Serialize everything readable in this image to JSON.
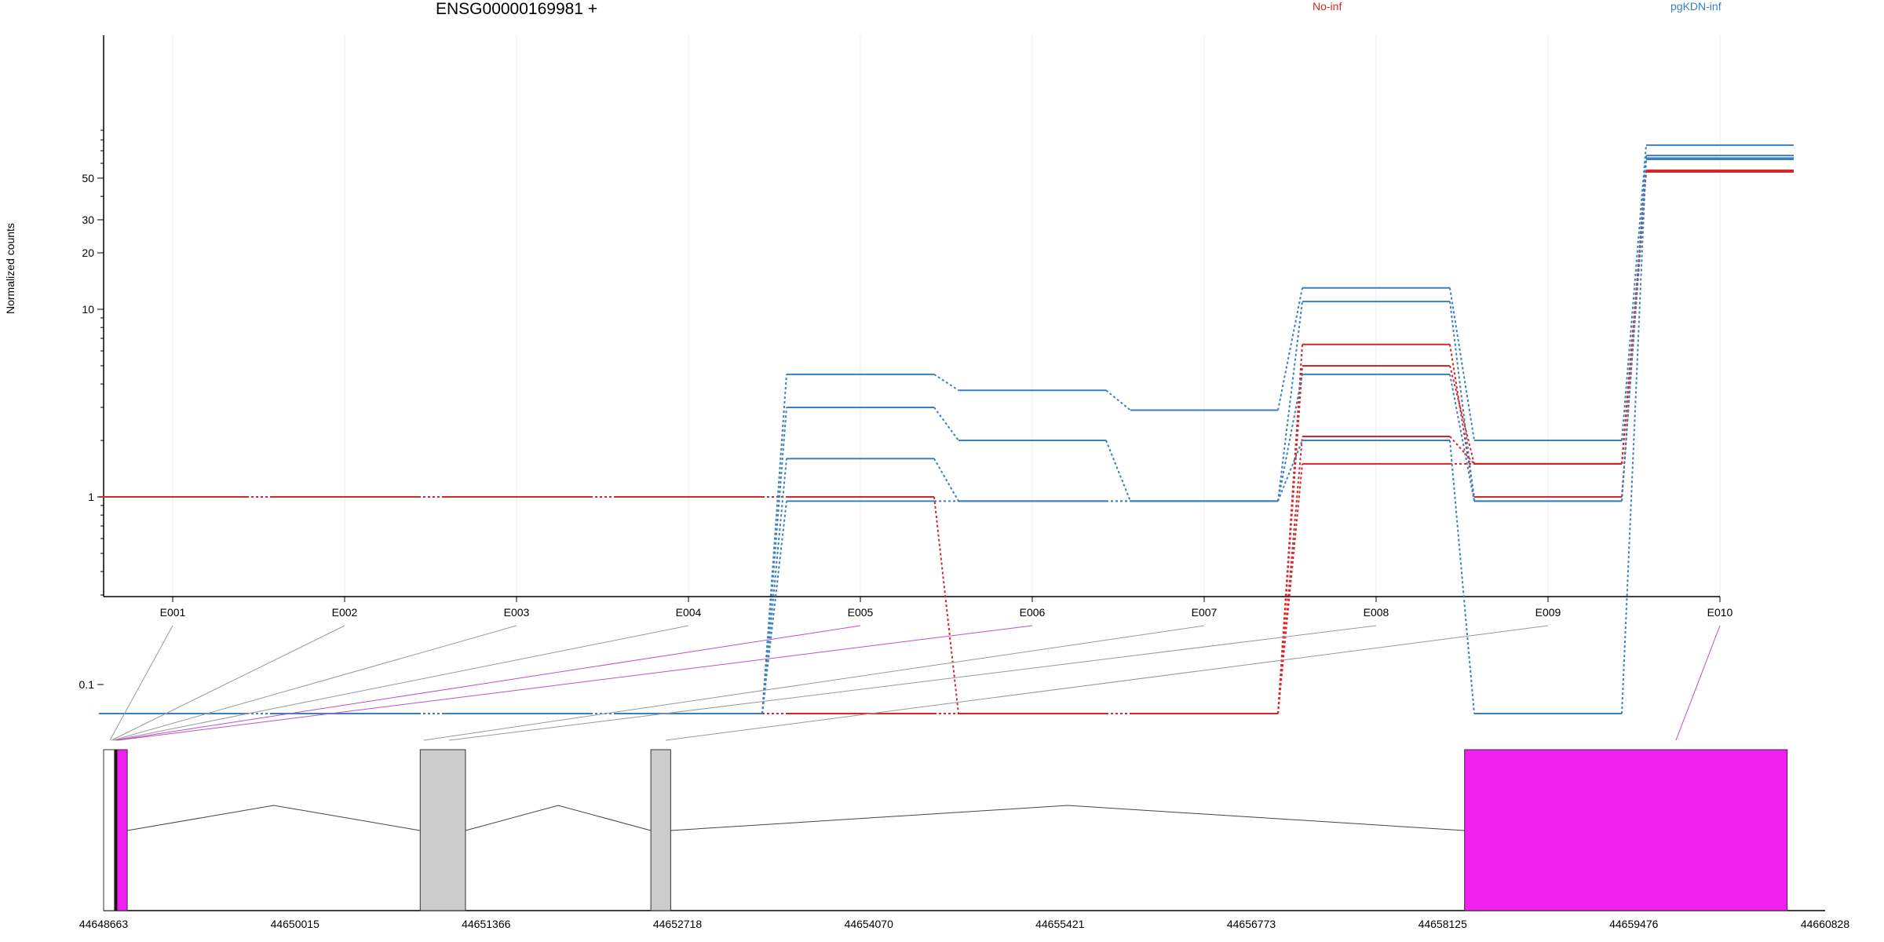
{
  "chart_data": {
    "type": "line",
    "title": "ENSG00000169981 +",
    "ylabel": "Normalized counts",
    "y_scale": "log",
    "yticks": [
      "0.1",
      "1",
      "10",
      "20",
      "30",
      "50"
    ],
    "categories": [
      "E001",
      "E002",
      "E003",
      "E004",
      "E005",
      "E006",
      "E007",
      "E008",
      "E009",
      "E010"
    ],
    "legend": [
      {
        "name": "No-inf",
        "color": "#d62728"
      },
      {
        "name": "pgKDN-inf",
        "color": "#3a7fc0"
      }
    ],
    "series": [
      {
        "group": "No-inf",
        "values": [
          1,
          1,
          1,
          1,
          1,
          0.07,
          0.07,
          6.5,
          1,
          55
        ]
      },
      {
        "group": "No-inf",
        "values": [
          0.07,
          0.07,
          0.07,
          0.07,
          0.07,
          0.07,
          0.07,
          5.0,
          1.5,
          54
        ]
      },
      {
        "group": "No-inf",
        "values": [
          0.07,
          0.07,
          0.07,
          0.07,
          0.07,
          0.07,
          0.07,
          2.1,
          1.5,
          54
        ]
      },
      {
        "group": "No-inf",
        "values": [
          0.07,
          0.07,
          0.07,
          0.07,
          0.07,
          0.07,
          0.07,
          1.5,
          1.5,
          54
        ]
      },
      {
        "group": "pgKDN-inf",
        "values": [
          0.07,
          0.07,
          0.07,
          0.07,
          4.5,
          3.7,
          2.9,
          13,
          2.0,
          75
        ]
      },
      {
        "group": "pgKDN-inf",
        "values": [
          0.07,
          0.07,
          0.07,
          0.07,
          3.0,
          2.0,
          0.95,
          11,
          0.95,
          66
        ]
      },
      {
        "group": "pgKDN-inf",
        "values": [
          0.07,
          0.07,
          0.07,
          0.07,
          1.6,
          0.95,
          0.95,
          4.5,
          0.95,
          64
        ]
      },
      {
        "group": "pgKDN-inf",
        "values": [
          0.07,
          0.07,
          0.07,
          0.07,
          0.95,
          0.95,
          0.95,
          2.0,
          0.07,
          63
        ]
      }
    ],
    "gene_model": {
      "start": 44648663,
      "end": 44660828,
      "coordinate_ticks": [
        "44648663",
        "44650015",
        "44651366",
        "44652718",
        "44654070",
        "44655421",
        "44656773",
        "44658125",
        "44659476",
        "44660828"
      ],
      "exon_segments": [
        {
          "start": 44648663,
          "end": 44648740,
          "color": "#ffffff"
        },
        {
          "start": 44648740,
          "end": 44648830,
          "color": "#f020f0"
        },
        {
          "start": 44650900,
          "end": 44651220,
          "color": "#cccccc"
        },
        {
          "start": 44652530,
          "end": 44652670,
          "color": "#cccccc"
        },
        {
          "start": 44658280,
          "end": 44660560,
          "color": "#f020f0"
        }
      ],
      "exon_highlight": [
        "no",
        "no",
        "no",
        "no",
        "yes",
        "yes",
        "no",
        "no",
        "no",
        "yes"
      ]
    },
    "colors": {
      "red": "#d62728",
      "blue": "#3a7fc0",
      "magenta": "#f020f0",
      "grey": "#cccccc",
      "link_grey": "#999999",
      "link_magenta": "#c050c0"
    }
  }
}
